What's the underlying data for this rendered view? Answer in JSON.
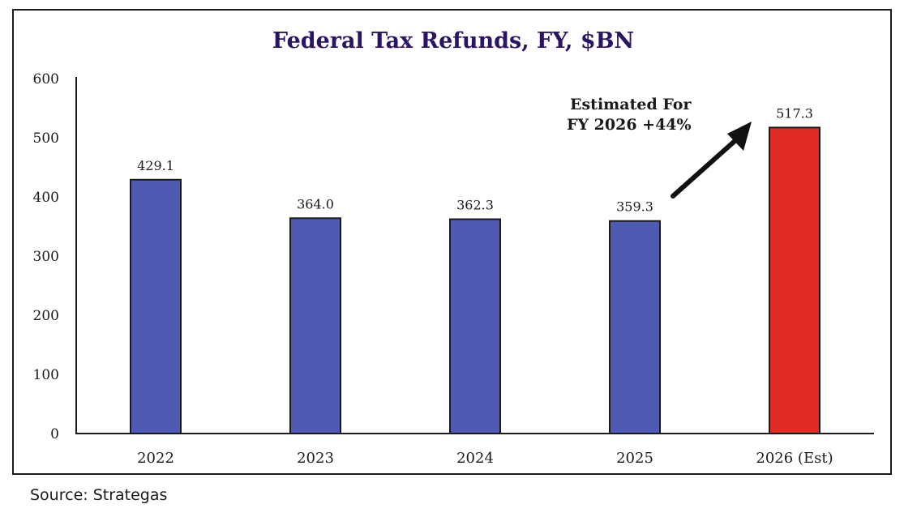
{
  "chart_data": {
    "type": "bar",
    "title": "Federal Tax Refunds, FY, $BN",
    "xlabel": "",
    "ylabel": "",
    "categories": [
      "2022",
      "2023",
      "2024",
      "2025",
      "2026 (Est)"
    ],
    "values": [
      429.1,
      364.0,
      362.3,
      359.3,
      517.3
    ],
    "data_labels": [
      "429.1",
      "364.0",
      "362.3",
      "359.3",
      "517.3"
    ],
    "ylim": [
      0,
      600
    ],
    "yticks": [
      0,
      100,
      200,
      300,
      400,
      500,
      600
    ],
    "ytick_labels": [
      "0",
      "100",
      "200",
      "300",
      "400",
      "500",
      "600"
    ],
    "grid": false,
    "legend": "none",
    "colors": [
      "#4f5ab5",
      "#4f5ab5",
      "#4f5ab5",
      "#4f5ab5",
      "#e02a24"
    ],
    "annotation": {
      "lines": [
        "Estimated For",
        "FY 2026 +44%"
      ],
      "arrow": "points-to-2026-bar"
    }
  },
  "source": "Source: Strategas"
}
